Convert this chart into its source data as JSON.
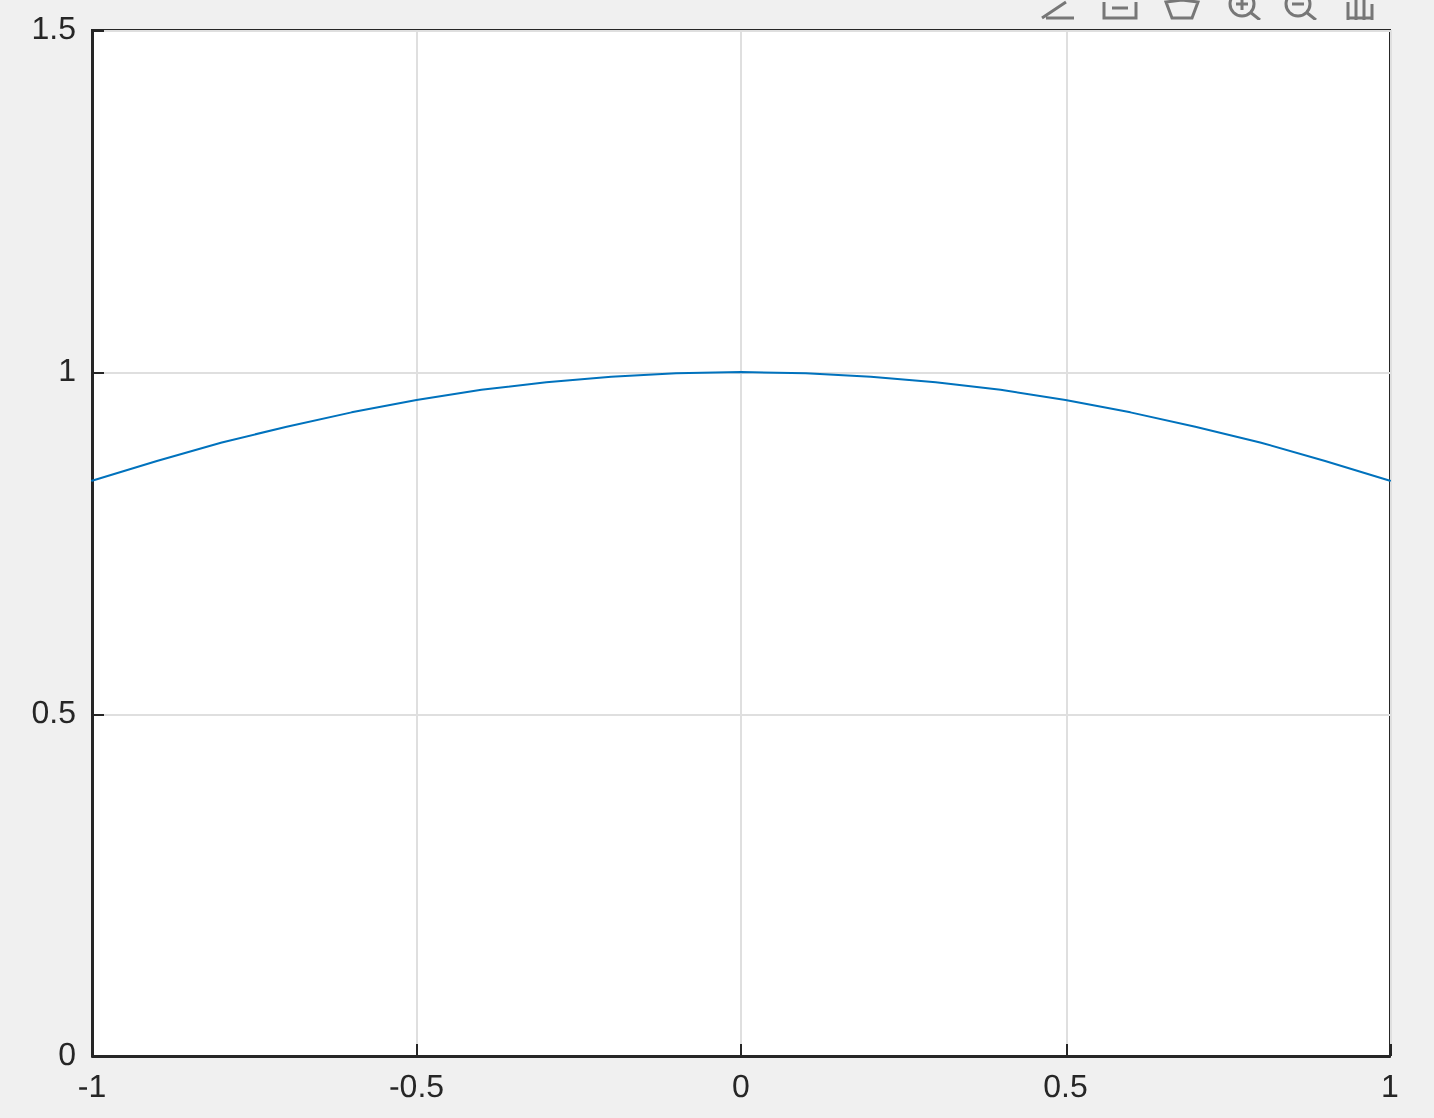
{
  "chart_data": {
    "type": "line",
    "x": [
      -1,
      -0.9,
      -0.8,
      -0.7,
      -0.6,
      -0.5,
      -0.4,
      -0.3,
      -0.2,
      -0.1,
      0,
      0.1,
      0.2,
      0.3,
      0.4,
      0.5,
      0.6,
      0.7,
      0.8,
      0.9,
      1
    ],
    "series": [
      {
        "color": "#0072bd",
        "values": [
          0.841,
          0.87,
          0.897,
          0.92,
          0.941,
          0.959,
          0.974,
          0.985,
          0.993,
          0.998,
          1,
          0.998,
          0.993,
          0.985,
          0.974,
          0.959,
          0.941,
          0.92,
          0.897,
          0.87,
          0.841
        ]
      }
    ],
    "xlim": [
      -1,
      1
    ],
    "ylim": [
      0,
      1.5
    ],
    "xticks": [
      -1,
      -0.5,
      0,
      0.5,
      1
    ],
    "yticks": [
      0,
      0.5,
      1,
      1.5
    ],
    "grid": true,
    "marker": "none",
    "line_style": "solid"
  }
}
